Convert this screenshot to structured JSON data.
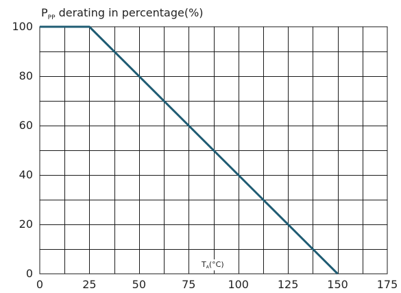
{
  "chart_data": {
    "type": "line",
    "title": {
      "main": "P",
      "subscript": "PP",
      "rest": " derating in percentage(%)"
    },
    "xlabel": {
      "main": "T",
      "subscript": "A",
      "rest": "(°C)"
    },
    "ylabel": "",
    "xlim": [
      0,
      175
    ],
    "ylim": [
      0,
      100
    ],
    "x_ticks": [
      0,
      25,
      50,
      75,
      100,
      125,
      150,
      175
    ],
    "y_ticks": [
      0,
      20,
      40,
      60,
      80,
      100
    ],
    "x_tick_labels": [
      "0",
      "25",
      "50",
      "75",
      "100",
      "125",
      "150",
      "175"
    ],
    "y_tick_labels": [
      "0",
      "20",
      "40",
      "60",
      "80",
      "100"
    ],
    "minor_x_step": 12.5,
    "minor_y_step": 10,
    "grid": true,
    "series": [
      {
        "color": "#1f5c73",
        "x": [
          0,
          25,
          150
        ],
        "y": [
          100,
          100,
          0
        ]
      }
    ]
  }
}
